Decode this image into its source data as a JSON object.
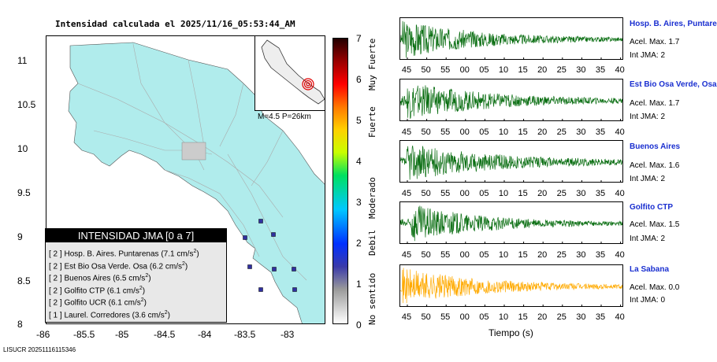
{
  "map_title": "Intensidad calculada el 2025/11/16_05:53:44_AM",
  "map": {
    "y_ticks": [
      "11",
      "10.5",
      "10",
      "9.5",
      "9",
      "8.5",
      "8"
    ],
    "x_ticks": [
      "-86",
      "-85.5",
      "-85",
      "-84.5",
      "-84",
      "-83.5",
      "-83"
    ],
    "magnitude_label": "M=4.5 P=26km",
    "land_color": "#b0ecec",
    "station_color": "#3030a0"
  },
  "legend": {
    "title": "INTENSIDAD JMA [0 a 7]",
    "rows": [
      {
        "jma": "[ 2 ]",
        "name": "Hosp. B. Aires. Puntarenas",
        "acc": "(7.1 cm/s",
        "sup": "2",
        "end": ")"
      },
      {
        "jma": "[ 2 ]",
        "name": "Est Bio Osa Verde. Osa",
        "acc": "(6.2 cm/s",
        "sup": "2",
        "end": ")"
      },
      {
        "jma": "[ 2 ]",
        "name": "Buenos Aires",
        "acc": "(6.5 cm/s",
        "sup": "2",
        "end": ")"
      },
      {
        "jma": "[ 2 ]",
        "name": "Golfito CTP",
        "acc": "(6.1 cm/s",
        "sup": "2",
        "end": ")"
      },
      {
        "jma": "[ 2 ]",
        "name": "Golfito UCR",
        "acc": "(6.1 cm/s",
        "sup": "2",
        "end": ")"
      },
      {
        "jma": "[ 1 ]",
        "name": "Laurel. Corredores",
        "acc": "(3.6 cm/s",
        "sup": "2",
        "end": ")"
      }
    ]
  },
  "colorbar": {
    "ticks": [
      "7",
      "6",
      "5",
      "4",
      "3",
      "2",
      "1",
      "0"
    ],
    "words": [
      "Muy Fuerte",
      "Fuerte",
      "Moderado",
      "Debil",
      "No sentido"
    ]
  },
  "traces": {
    "x_ticks": [
      "45",
      "50",
      "55",
      "00",
      "05",
      "10",
      "15",
      "20",
      "25",
      "30",
      "35",
      "40"
    ],
    "xlabel": "Tiempo (s)",
    "stations": [
      {
        "name": "Hosp. B. Aires, Puntare",
        "acel": "Acel. Max. 1.7",
        "int": "Int JMA: 2",
        "color": "#0a6e12",
        "peak": 0.95,
        "onset": 0.01,
        "decay": 3.0
      },
      {
        "name": "Est Bio Osa Verde, Osa",
        "acel": "Acel. Max. 1.7",
        "int": "Int JMA: 2",
        "color": "#0a6e12",
        "peak": 0.9,
        "onset": 0.03,
        "decay": 2.6
      },
      {
        "name": "Buenos Aires",
        "acel": "Acel. Max. 1.6",
        "int": "Int JMA: 2",
        "color": "#0a6e12",
        "peak": 0.9,
        "onset": 0.03,
        "decay": 2.4
      },
      {
        "name": "Golfito CTP",
        "acel": "Acel. Max. 1.5",
        "int": "Int JMA: 2",
        "color": "#0a6e12",
        "peak": 0.95,
        "onset": 0.05,
        "decay": 3.2
      },
      {
        "name": "La Sabana",
        "acel": "Acel. Max. 0.0",
        "int": "Int JMA: 0",
        "color": "#ffaa00",
        "peak": 0.9,
        "onset": 0.01,
        "decay": 2.8
      }
    ]
  },
  "footer": "LISUCR 20251116115346"
}
